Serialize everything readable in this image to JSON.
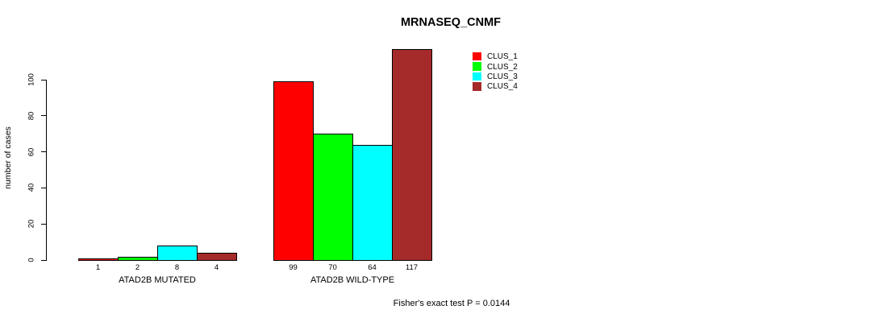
{
  "chart_data": {
    "type": "bar",
    "title": "MRNASEQ_CNMF",
    "ylabel": "number of cases",
    "xlabel": "",
    "annotation": "Fisher's exact test P = 0.0144",
    "ylim": [
      0,
      100
    ],
    "yticks": [
      0,
      20,
      40,
      60,
      80,
      100
    ],
    "grid": false,
    "legend_position": "top-right",
    "series_names": [
      "CLUS_1",
      "CLUS_2",
      "CLUS_3",
      "CLUS_4"
    ],
    "series_colors": [
      "#FF0000",
      "#00FF00",
      "#00FFFF",
      "#A52A2A"
    ],
    "groups": [
      {
        "label": "ATAD2B MUTATED",
        "values": [
          1,
          2,
          8,
          4
        ],
        "bar_labels": [
          "1",
          "2",
          "8",
          "4"
        ]
      },
      {
        "label": "ATAD2B WILD-TYPE",
        "values": [
          99,
          70,
          64,
          117
        ],
        "bar_labels": [
          "99",
          "70",
          "64",
          "117"
        ]
      }
    ],
    "legend": [
      {
        "label": "CLUS_1",
        "color": "#FF0000"
      },
      {
        "label": "CLUS_2",
        "color": "#00FF00"
      },
      {
        "label": "CLUS_3",
        "color": "#00FFFF"
      },
      {
        "label": "CLUS_4",
        "color": "#A52A2A"
      }
    ]
  }
}
